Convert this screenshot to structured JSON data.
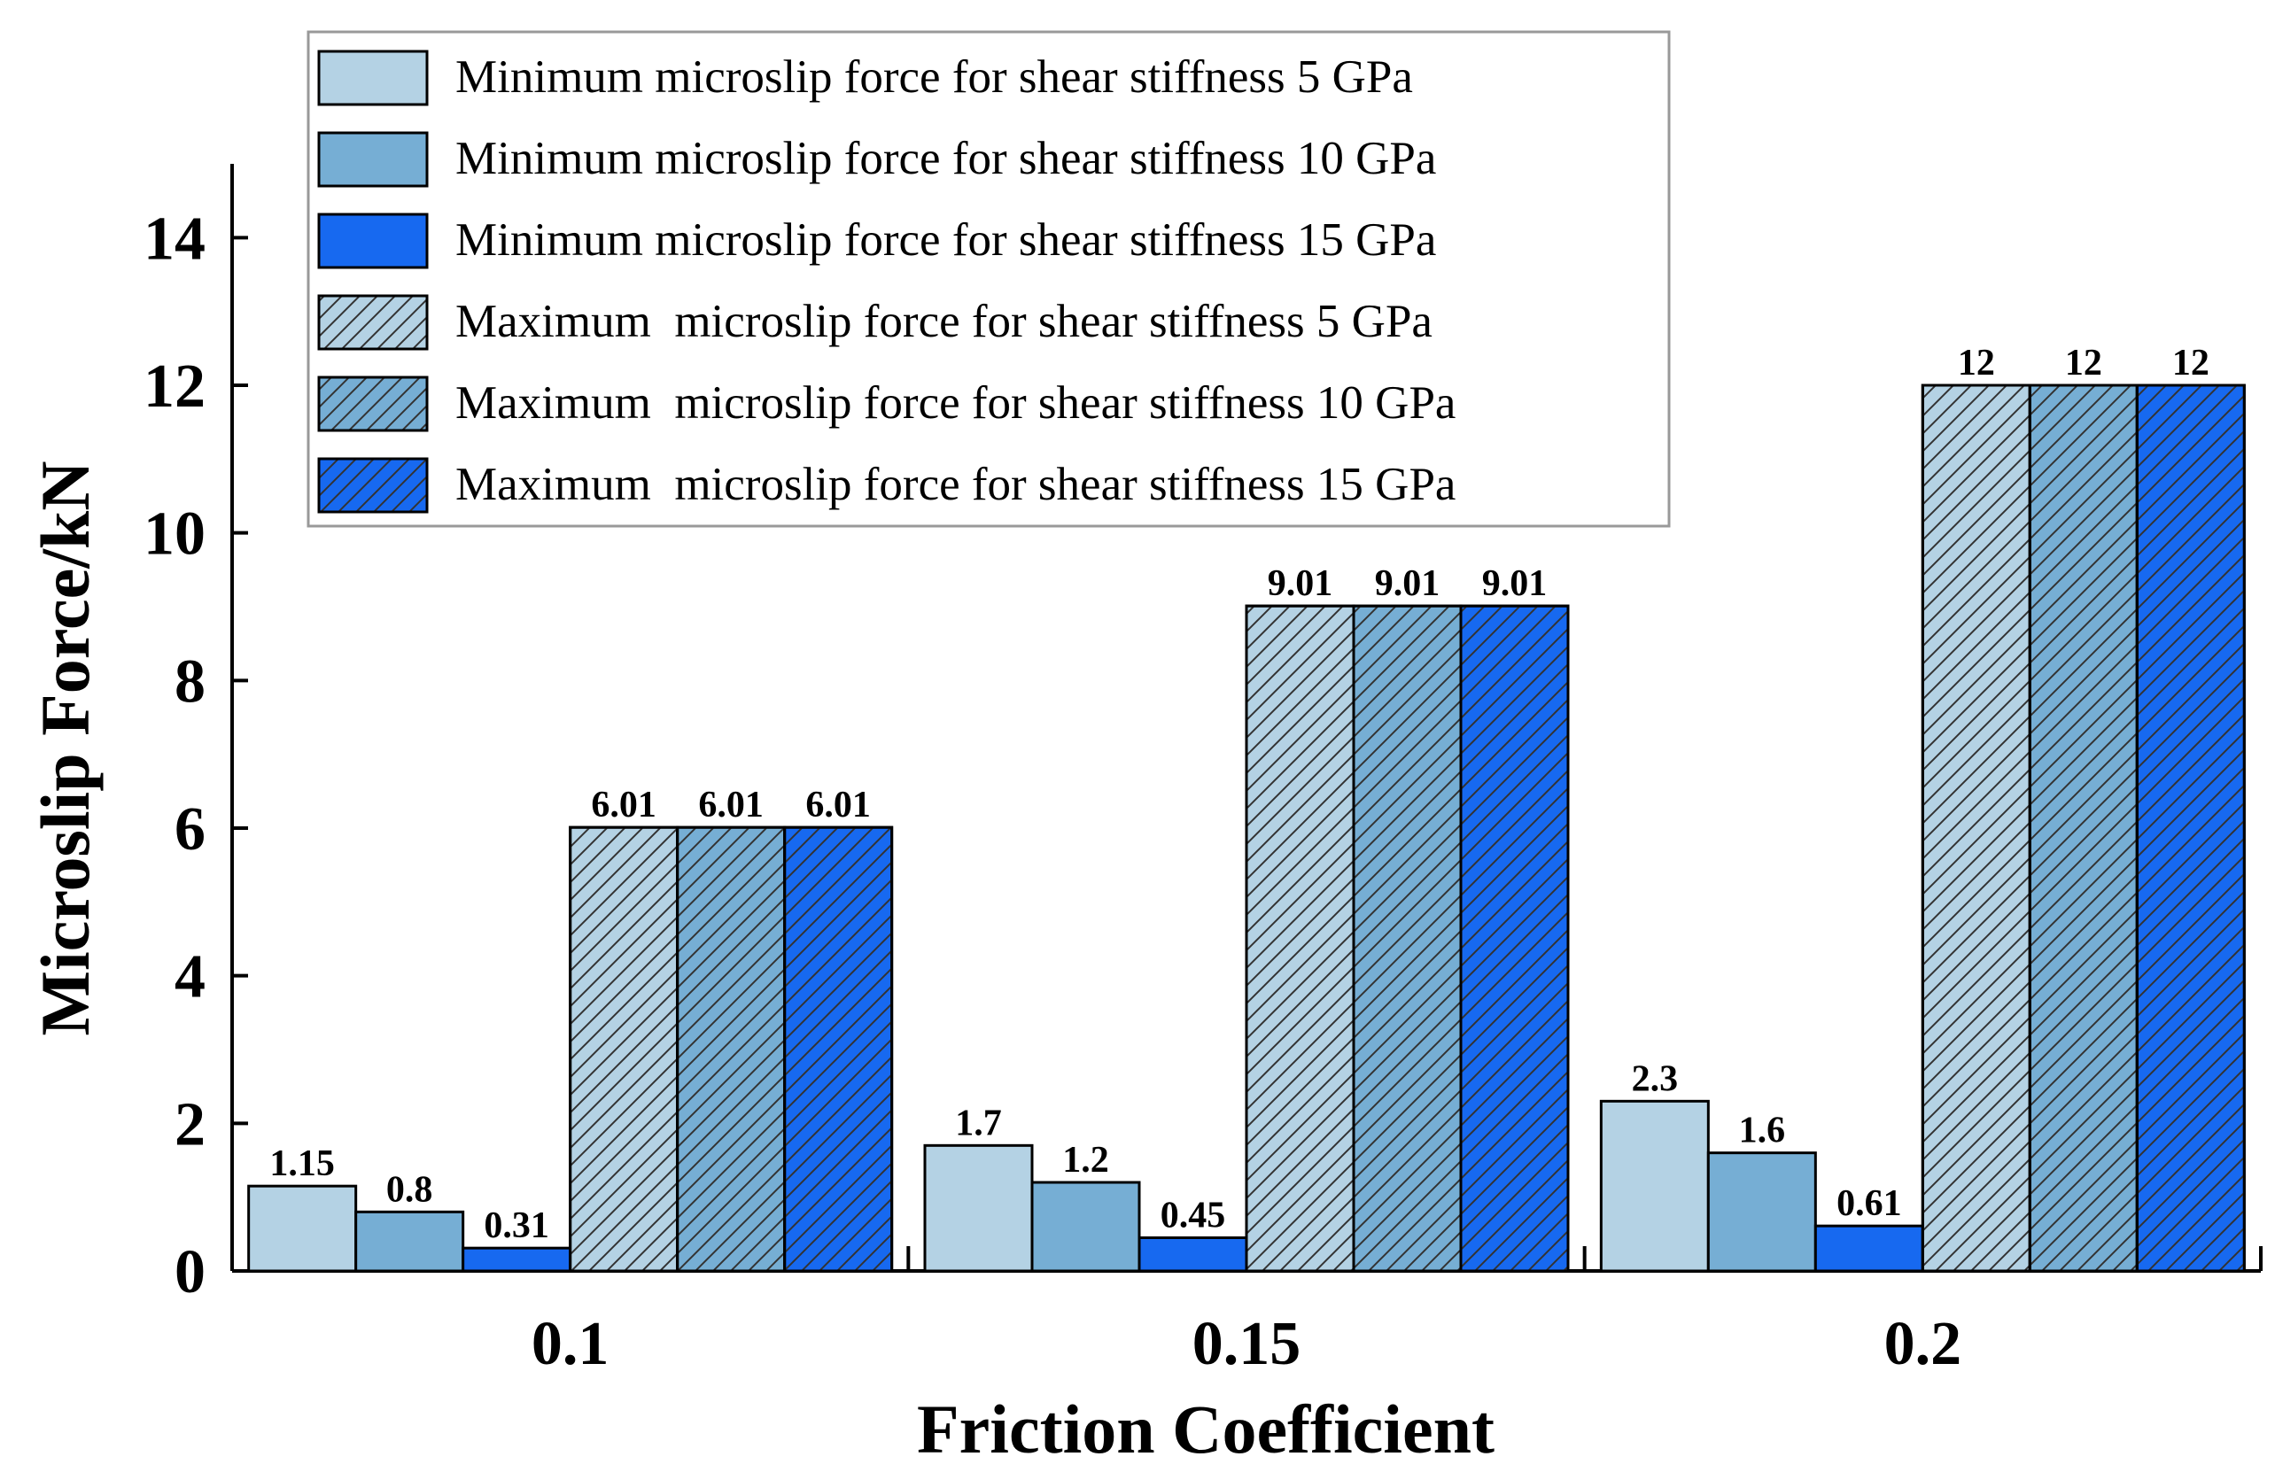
{
  "chart_data": {
    "type": "bar",
    "title": "",
    "xlabel": "Friction Coefficient",
    "ylabel": "Microslip Force/kN",
    "categories": [
      "0.1",
      "0.15",
      "0.2"
    ],
    "ylim": [
      0,
      15
    ],
    "yticks": [
      0,
      2,
      4,
      6,
      8,
      10,
      12,
      14
    ],
    "ytick_labels": [
      "0",
      "2",
      "4",
      "6",
      "8",
      "10",
      "12",
      "14"
    ],
    "legend_position": "top-left",
    "grid": false,
    "series": [
      {
        "name": "Minimum microslip force for shear stiffness 5 GPa",
        "values": [
          1.15,
          1.7,
          2.3
        ],
        "labels": [
          "1.15",
          "1.7",
          "2.3"
        ],
        "color": "#b4d2e4",
        "hatched": false
      },
      {
        "name": "Minimum microslip force for shear stiffness 10 GPa",
        "values": [
          0.8,
          1.2,
          1.6
        ],
        "labels": [
          "0.8",
          "1.2",
          "1.6"
        ],
        "color": "#76aed4",
        "hatched": false
      },
      {
        "name": "Minimum microslip force for shear stiffness 15 GPa",
        "values": [
          0.31,
          0.45,
          0.61
        ],
        "labels": [
          "0.31",
          "0.45",
          "0.61"
        ],
        "color": "#1769f0",
        "hatched": false
      },
      {
        "name": "Maximum  microslip force for shear stiffness 5 GPa",
        "values": [
          6.01,
          9.01,
          12
        ],
        "labels": [
          "6.01",
          "9.01",
          "12"
        ],
        "color": "#b4d2e4",
        "hatched": true
      },
      {
        "name": "Maximum  microslip force for shear stiffness 10 GPa",
        "values": [
          6.01,
          9.01,
          12
        ],
        "labels": [
          "6.01",
          "9.01",
          "12"
        ],
        "color": "#76aed4",
        "hatched": true
      },
      {
        "name": "Maximum  microslip force for shear stiffness 15 GPa",
        "values": [
          6.01,
          9.01,
          12
        ],
        "labels": [
          "6.01",
          "9.01",
          "12"
        ],
        "color": "#1769f0",
        "hatched": true
      }
    ]
  }
}
